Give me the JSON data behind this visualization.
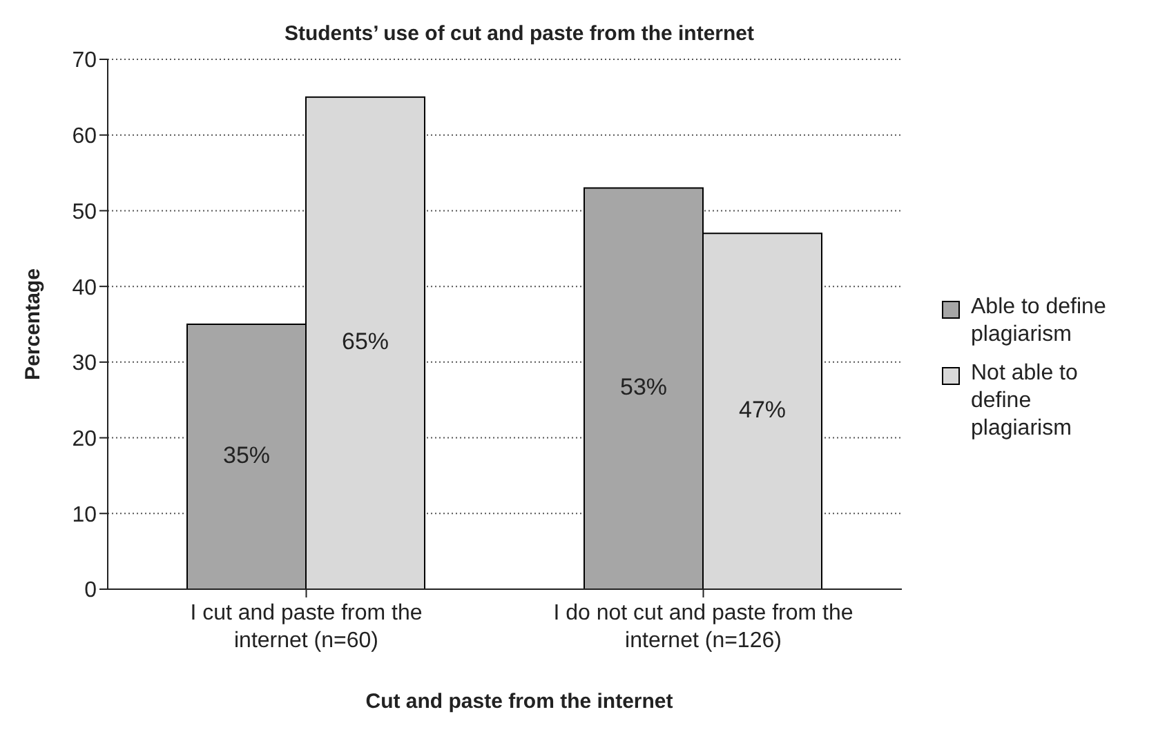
{
  "chart_data": {
    "type": "bar",
    "title": "Students’ use of cut and paste from the internet",
    "xlabel": "Cut and paste from the internet",
    "ylabel": "Percentage",
    "categories": [
      "I cut and paste from the internet (n=60)",
      "I do not cut and paste from the internet (n=126)"
    ],
    "series": [
      {
        "name": "Able to define plagiarism",
        "color": "#a6a6a6",
        "values": [
          35,
          53
        ],
        "value_labels": [
          "35%",
          "53%"
        ]
      },
      {
        "name": "Not able to define plagiarism",
        "color": "#d9d9d9",
        "values": [
          65,
          47
        ],
        "value_labels": [
          "65%",
          "47%"
        ]
      }
    ],
    "ylim": [
      0,
      70
    ],
    "yticks": [
      0,
      10,
      20,
      30,
      40,
      50,
      60,
      70
    ],
    "grid": "y",
    "legend": "right"
  }
}
